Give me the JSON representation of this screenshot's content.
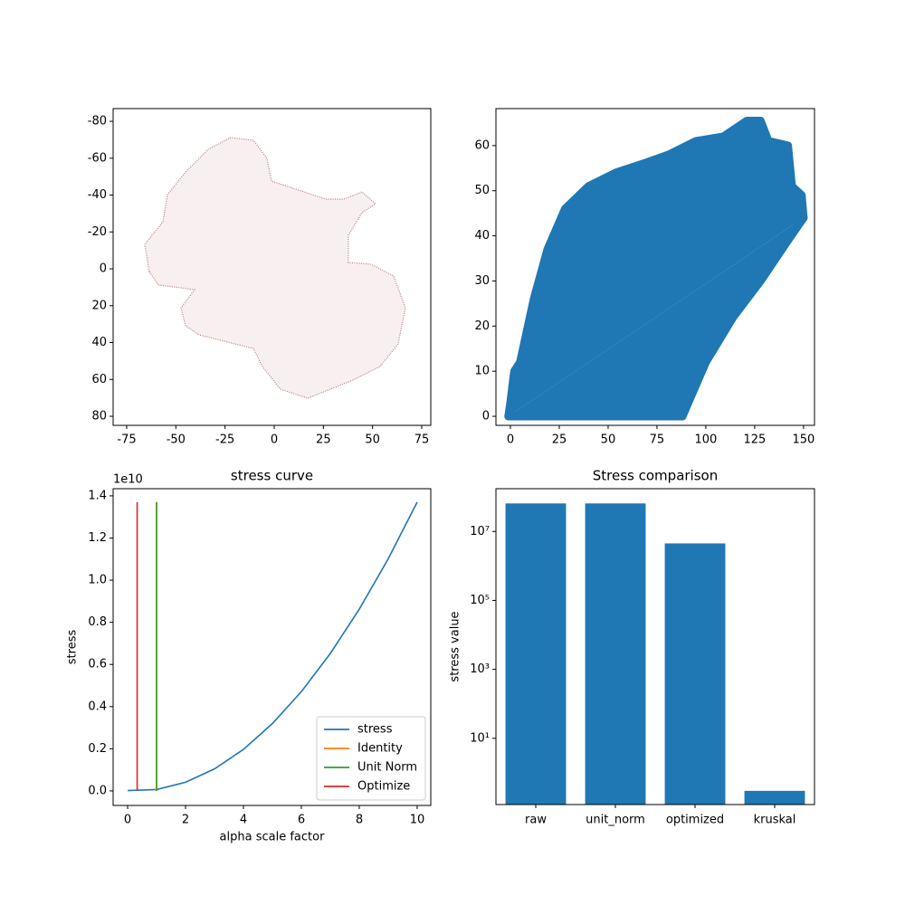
{
  "chart_data": [
    {
      "type": "mesh",
      "color": "#a05a5a",
      "x": [
        -63.5,
        -65.8,
        -56.6,
        -54.3,
        -45.1,
        -33.6,
        -22.1,
        -10.6,
        -3.7,
        -1.4,
        12.4,
        26.2,
        35.4,
        44.6,
        51.5,
        44.6,
        37.7,
        37.7,
        49.2,
        60.7,
        66.7,
        63.0,
        53.8,
        40.0,
        28.5,
        17.0,
        3.2,
        -6.0,
        -10.6,
        -29.0,
        -38.2,
        -45.1,
        -47.4,
        -40.5,
        -47.4,
        -58.9
      ],
      "y": [
        1.5,
        -13.3,
        -25.5,
        -40.2,
        -52.5,
        -64.8,
        -71.2,
        -69.7,
        -59.9,
        -47.6,
        -42.7,
        -37.8,
        -37.8,
        -41.7,
        -35.3,
        -30.4,
        -18.2,
        -3.4,
        -2.5,
        3.9,
        21.1,
        40.7,
        53.0,
        60.4,
        65.3,
        70.2,
        65.3,
        53.0,
        43.2,
        38.3,
        35.8,
        30.9,
        21.1,
        11.3,
        10.3,
        8.8
      ],
      "xlim": [
        -81.9,
        79.6
      ],
      "ylim": [
        84.9,
        -86.9
      ],
      "xticks": [
        -75,
        -50,
        -25,
        0,
        25,
        50,
        75
      ],
      "yticks": [
        -80,
        -60,
        -40,
        -20,
        0,
        20,
        40,
        60,
        80
      ]
    },
    {
      "type": "band",
      "color": "#1f77b4",
      "series": [
        {
          "x": [
            -1,
            0,
            2,
            5,
            12,
            19,
            28,
            40,
            54,
            68,
            81,
            95,
            109,
            121,
            128,
            132,
            142,
            144,
            149,
            150
          ],
          "y": [
            0,
            3,
            10,
            12,
            26,
            37,
            46,
            51,
            54,
            56,
            58,
            61,
            62,
            65.5,
            65.5,
            61,
            60,
            51,
            49,
            44
          ]
        },
        {
          "x": [
            -1,
            88,
            100,
            114,
            128,
            142,
            150
          ],
          "y": [
            0,
            0,
            12,
            22,
            30,
            39,
            44
          ]
        }
      ],
      "xlim": [
        -7.4,
        155.6
      ],
      "ylim": [
        -2,
        68.2
      ],
      "xticks": [
        0,
        25,
        50,
        75,
        100,
        125,
        150
      ],
      "yticks": [
        0,
        10,
        20,
        30,
        40,
        50,
        60
      ]
    },
    {
      "type": "line",
      "title": "stress curve",
      "xlabel": "alpha scale factor",
      "ylabel": "stress",
      "offset_text": "1e10",
      "legend": "lower right",
      "series": [
        {
          "name": "stress",
          "color": "#1f77b4",
          "x": [
            0,
            1,
            2,
            3,
            4,
            5,
            6,
            7,
            8,
            9,
            10
          ],
          "values": [
            0.0016,
            0.0066,
            0.0409,
            0.1044,
            0.197,
            0.3195,
            0.471,
            0.652,
            0.862,
            1.101,
            1.37
          ]
        },
        {
          "name": "Identity",
          "color": "#ff7f0e",
          "x": [
            1,
            1
          ],
          "values": [
            0,
            1.37
          ]
        },
        {
          "name": "Unit Norm",
          "color": "#2ca02c",
          "x": [
            1,
            1
          ],
          "values": [
            0,
            1.37
          ]
        },
        {
          "name": "Optimize",
          "color": "#d62728",
          "x": [
            0.33,
            0.33
          ],
          "values": [
            0,
            1.37
          ]
        }
      ],
      "xlim": [
        -0.5,
        10.47
      ],
      "ylim": [
        -0.069,
        1.434
      ],
      "xticks": [
        0,
        2,
        4,
        6,
        8,
        10
      ],
      "yticks": [
        {
          "value": 0,
          "label": "0.0"
        },
        0.2,
        0.4,
        0.6,
        0.8,
        {
          "value": 1,
          "label": "1.0"
        },
        1.2,
        1.4
      ]
    },
    {
      "type": "bar",
      "title": "Stress comparison",
      "ylabel": "stress value",
      "log": true,
      "color": "#1f77b4",
      "categories": [
        "raw",
        "unit_norm",
        "optimized",
        "kruskal"
      ],
      "values": [
        65000000,
        65000000,
        4500000,
        0.3
      ],
      "ylim": [
        0.12,
        174000000
      ],
      "yticks": [
        {
          "value": 10,
          "label": "10¹"
        },
        {
          "value": 1000,
          "label": "10³"
        },
        {
          "value": 100000,
          "label": "10⁵"
        },
        {
          "value": 10000000,
          "label": "10⁷"
        }
      ]
    }
  ]
}
